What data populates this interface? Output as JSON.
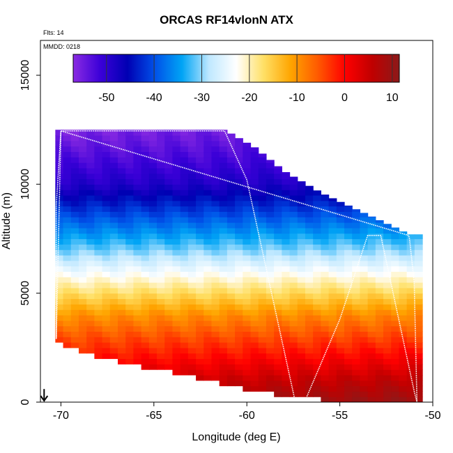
{
  "chart_data": {
    "type": "heatmap",
    "title": "ORCAS RF14vlonN ATX",
    "flights_label": "Flts: 14",
    "date_label": "MMDD: 0218",
    "xlabel": "Longitude (deg E)",
    "ylabel": "Altitude (m)",
    "xlim": [
      -71.1,
      -50.0
    ],
    "ylim": [
      0,
      16600
    ],
    "x_ticks": [
      -70,
      -65,
      -60,
      -55,
      -50
    ],
    "y_ticks": [
      0,
      5000,
      10000,
      15000
    ],
    "colorbar": {
      "range": [
        -57,
        11.5
      ],
      "ticks": [
        -50,
        -40,
        -30,
        -20,
        -10,
        0,
        10
      ],
      "colors": [
        "#8a2be2",
        "#3b00d8",
        "#0000b3",
        "#0050e8",
        "#00a4f5",
        "#bfe8ff",
        "#ffffff",
        "#ffe066",
        "#ffa500",
        "#ff5a00",
        "#ff0000",
        "#c00000",
        "#8b1a1a"
      ]
    },
    "temperature_field": {
      "description_units": "ATX (deg C) vs altitude",
      "profile_altitude_m": [
        0,
        1000,
        2000,
        3000,
        4000,
        5000,
        6000,
        7000,
        8000,
        9000,
        10000,
        11000,
        12000,
        12500
      ],
      "profile_temperature_c_west": [
        8,
        4,
        -1,
        -5,
        -10,
        -17,
        -24,
        -31,
        -37,
        -43,
        -49,
        -52,
        -55,
        -56
      ],
      "profile_temperature_c_east": [
        10,
        6,
        1,
        -4,
        -9,
        -16,
        -23,
        -30,
        -36,
        -42,
        -48,
        -51,
        -53,
        -54
      ],
      "top_boundary": {
        "x": [
          -70.0,
          -61.2,
          -59.6,
          -58.0,
          -56.0,
          -54.0,
          -52.0,
          -51.3
        ],
        "y": [
          12500,
          12500,
          11700,
          10600,
          9600,
          8800,
          8000,
          7700
        ]
      },
      "bottom_boundary": {
        "x": [
          -70.6,
          -69.5,
          -67.0,
          -64.0,
          -61.0,
          -58.5,
          -56.0,
          -53.0,
          -51.0
        ],
        "y": [
          2900,
          2600,
          2000,
          1500,
          900,
          500,
          250,
          50,
          0
        ]
      },
      "west_edge_x": -70.3,
      "east_edge_x": -50.9
    },
    "flight_track": {
      "lon": [
        -70.0,
        -61.2,
        -60.0,
        -57.4,
        -56.8,
        -55.0,
        -53.5,
        -52.8,
        -51.0,
        -50.85,
        -51.0,
        -51.25,
        -51.3,
        -70.0,
        -70.25,
        -70.25,
        -70.0
      ],
      "alt": [
        12450,
        12450,
        10200,
        40,
        200,
        3800,
        7650,
        7650,
        500,
        0,
        5500,
        7500,
        7650,
        12450,
        9000,
        2900,
        12450
      ]
    },
    "arrow": {
      "lon": -70.9,
      "alt": 600
    }
  }
}
